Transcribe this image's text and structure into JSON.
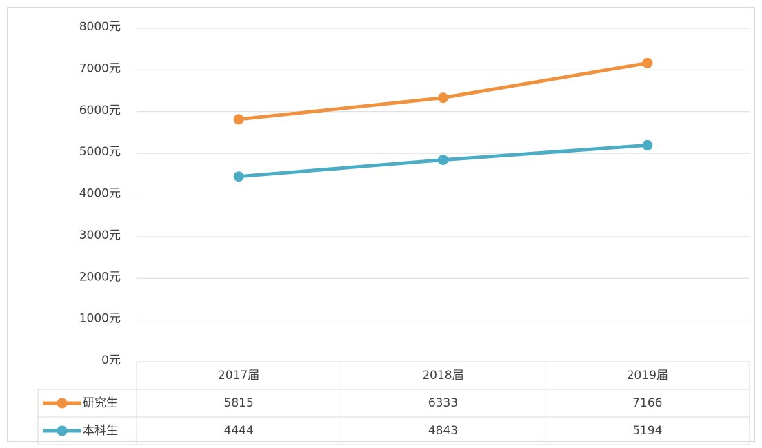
{
  "chart_data": {
    "type": "line",
    "categories": [
      "2017届",
      "2018届",
      "2019届"
    ],
    "series": [
      {
        "name": "研究生",
        "color": "#f0913e",
        "values": [
          5815,
          6333,
          7166
        ]
      },
      {
        "name": "本科生",
        "color": "#4bacc6",
        "values": [
          4444,
          4843,
          5194
        ]
      }
    ],
    "ylim": [
      0,
      8000
    ],
    "yticks": [
      {
        "value": 0,
        "label": "0元"
      },
      {
        "value": 1000,
        "label": "1000元"
      },
      {
        "value": 2000,
        "label": "2000元"
      },
      {
        "value": 3000,
        "label": "3000元"
      },
      {
        "value": 4000,
        "label": "4000元"
      },
      {
        "value": 5000,
        "label": "5000元"
      },
      {
        "value": 6000,
        "label": "6000元"
      },
      {
        "value": 7000,
        "label": "7000元"
      },
      {
        "value": 8000,
        "label": "8000元"
      }
    ],
    "grid": true,
    "data_table": true
  }
}
